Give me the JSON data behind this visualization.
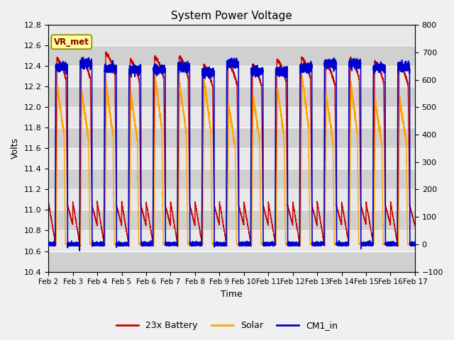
{
  "title": "System Power Voltage",
  "xlabel": "Time",
  "ylabel_left": "Volts",
  "ylim_left": [
    10.4,
    12.8
  ],
  "ylim_right": [
    -100,
    800
  ],
  "xtick_labels": [
    "Feb 2",
    "Feb 3",
    "Feb 4",
    "Feb 5",
    "Feb 6",
    "Feb 7",
    "Feb 8",
    "Feb 9",
    "Feb 10",
    "Feb 11",
    "Feb 12",
    "Feb 13",
    "Feb 14",
    "Feb 15",
    "Feb 16",
    "Feb 17"
  ],
  "bg_color": "#f0f0f0",
  "plot_bg_color": "#e8e8e8",
  "legend_labels": [
    "23x Battery",
    "Solar",
    "CM1_in"
  ],
  "legend_colors": [
    "#cc0000",
    "#ffa500",
    "#0000cc"
  ],
  "annotation_text": "VR_met",
  "annotation_color": "#880000",
  "annotation_bg": "#ffff99",
  "line_colors": {
    "battery": "#cc0000",
    "solar": "#ffa500",
    "cm1": "#0000cc"
  },
  "right_yticks": [
    -100,
    0,
    100,
    200,
    300,
    400,
    500,
    600,
    700,
    800
  ],
  "left_yticks": [
    10.4,
    10.6,
    10.8,
    11.0,
    11.2,
    11.4,
    11.6,
    11.8,
    12.0,
    12.2,
    12.4,
    12.6,
    12.8
  ],
  "n_days": 15,
  "pts_per_day": 500
}
